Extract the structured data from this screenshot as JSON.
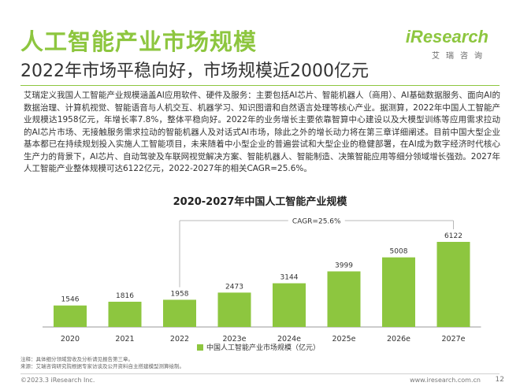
{
  "header": {
    "title": "人工智能产业市场规模",
    "subtitle": "2022年市场平稳向好，市场规模近2000亿元",
    "brand_name": "iResearch",
    "brand_cn": "艾瑞咨询"
  },
  "body_text": "艾瑞定义我国人工智能产业规模涵盖AI应用软件、硬件及服务：主要包括AI芯片、智能机器人（商用）、AI基础数据服务、面向AI的数据治理、计算机视觉、智能语音与人机交互、机器学习、知识图谱和自然语言处理等核心产业。据测算，2022年中国人工智能产业规模达1958亿元，年增长率7.8%，整体平稳向好。2022年的业务增长主要依靠智算中心建设以及大模型训练等应用需求拉动的AI芯片市场、无接触服务需求拉动的智能机器人及对话式AI市场，除此之外的增长动力将在第三章详细阐述。目前中国大型企业基本都已在持续规划投入实施人工智能项目，未来随着中小型企业的普遍尝试和大型企业的稳健部署，在AI成为数字经济时代核心生产力的背景下，AI芯片、自动驾驶及车联网视觉解决方案、智能机器人、智能制造、决策智能应用等细分领域增长强劲。2027年人工智能产业整体规模可达6122亿元，2022-2027年的相关CAGR=25.6%。",
  "chart_data": {
    "type": "bar",
    "title": "2020-2027年中国人工智能产业规模",
    "categories": [
      "2020",
      "2021",
      "2022",
      "2023e",
      "2024e",
      "2025e",
      "2026e",
      "2027e"
    ],
    "series": [
      {
        "name": "中国人工智能产业市场规模（亿元）",
        "values": [
          1546,
          1816,
          1958,
          2473,
          3144,
          3999,
          5008,
          6122
        ]
      }
    ],
    "data_labels": [
      "1546",
      "1816",
      "1958",
      "2473",
      "3144",
      "3999",
      "5008",
      "6122"
    ],
    "annotation": "CAGR=25.6%",
    "ylim": [
      0,
      6122
    ],
    "grid": false,
    "legend": "bottom-center",
    "colors": {
      "bar": "#8dc63f",
      "axis": "#999999",
      "annotation_line": "#b8b8b8"
    }
  },
  "footer": {
    "note": "注释：具体细分领域营收及分析请见报告第三章。",
    "source": "来源：艾瑞咨询研究院根据专家访谈及公开资料自主搭建模型测算绘制。",
    "copyright": "©2023.3 iResearch Inc.",
    "website": "www.iresearch.com.cn",
    "page_number": "12"
  }
}
